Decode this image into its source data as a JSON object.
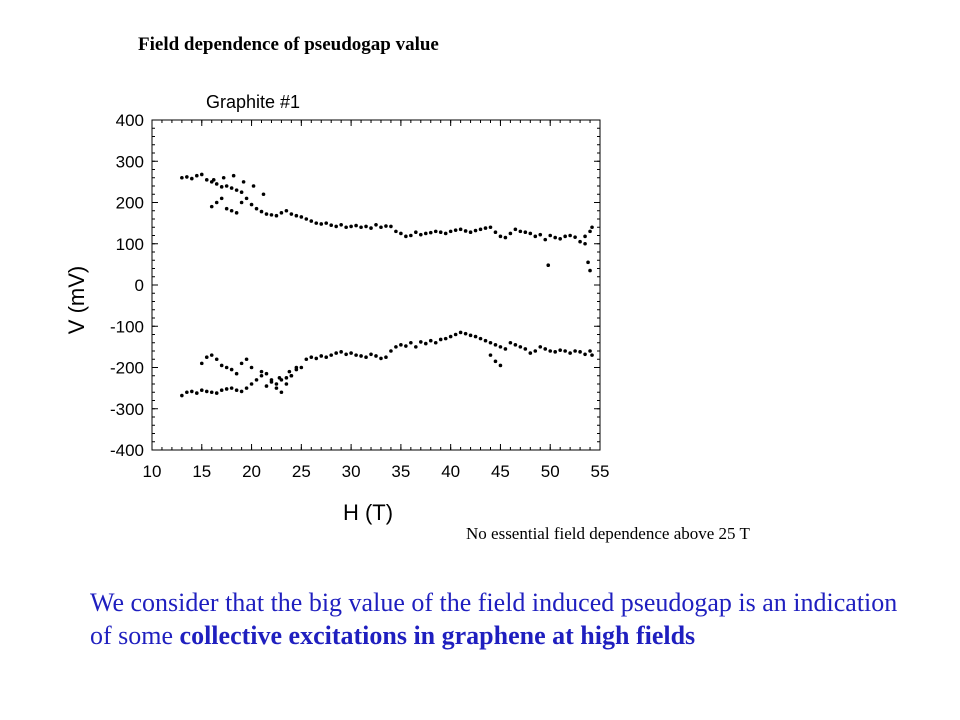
{
  "slide": {
    "title": "Field dependence of pseudogap value",
    "note": "No essential field dependence above 25 T",
    "conclusion_part1": "We consider that the big value of the field induced pseudogap is an indication of some ",
    "conclusion_bold": "collective excitations in graphene at high fields"
  },
  "chart_data": {
    "type": "scatter",
    "title": "Graphite #1",
    "xlabel": "H (T)",
    "ylabel": "V (mV)",
    "xlim": [
      10,
      55
    ],
    "ylim": [
      -400,
      400
    ],
    "xticks": [
      10,
      15,
      20,
      25,
      30,
      35,
      40,
      45,
      50,
      55
    ],
    "yticks": [
      400,
      300,
      200,
      100,
      0,
      -100,
      -200,
      -300,
      -400
    ],
    "grid": false,
    "legend": "none",
    "marker_color": "#000000",
    "series": [
      {
        "x": [
          13,
          13.5,
          14,
          14.5,
          15,
          15.5,
          16,
          16.5,
          17,
          17.5,
          18,
          18.5,
          19,
          19.5,
          20,
          20.5,
          21,
          21.5,
          22,
          22.5,
          23,
          23.5,
          24,
          24.5,
          25,
          25.5,
          26,
          26.5,
          27,
          27.5,
          28,
          28.5,
          29,
          29.5,
          30,
          30.5,
          31,
          31.5,
          32,
          32.5,
          33,
          33.5,
          34,
          34.5,
          35,
          35.5,
          36,
          36.5,
          37,
          37.5,
          38,
          38.5,
          39,
          39.5,
          40,
          40.5,
          41,
          41.5,
          42,
          42.5,
          43,
          43.5,
          44,
          44.5,
          45,
          45.5,
          46,
          46.5,
          47,
          47.5,
          48,
          48.5,
          49,
          49.5,
          50,
          50.5,
          51,
          51.5,
          52,
          52.5,
          53,
          53.5,
          54,
          54.2,
          16,
          16.5,
          17,
          17.5,
          18,
          18.5,
          19,
          16.2,
          17.2,
          18.2,
          19.2,
          20.2,
          21.2,
          49.8,
          53.8,
          54,
          53.5
        ],
        "y": [
          260,
          262,
          258,
          265,
          268,
          255,
          250,
          245,
          238,
          240,
          235,
          230,
          225,
          210,
          195,
          185,
          178,
          172,
          170,
          168,
          175,
          180,
          172,
          168,
          165,
          160,
          155,
          150,
          148,
          150,
          145,
          142,
          146,
          140,
          142,
          144,
          140,
          142,
          138,
          146,
          140,
          143,
          142,
          130,
          125,
          118,
          120,
          128,
          122,
          125,
          127,
          130,
          128,
          125,
          130,
          133,
          135,
          131,
          128,
          132,
          135,
          138,
          140,
          128,
          118,
          115,
          125,
          135,
          130,
          128,
          125,
          118,
          122,
          110,
          120,
          115,
          112,
          118,
          120,
          116,
          105,
          118,
          130,
          140,
          190,
          200,
          210,
          185,
          180,
          175,
          200,
          255,
          260,
          265,
          250,
          240,
          220,
          48,
          55,
          35,
          100
        ]
      },
      {
        "x": [
          13,
          13.5,
          14,
          14.5,
          15,
          15.5,
          16,
          16.5,
          17,
          17.5,
          18,
          18.5,
          19,
          19.5,
          20,
          20.5,
          21,
          21.5,
          22,
          22.5,
          23,
          23.5,
          24,
          24.5,
          25,
          25.5,
          26,
          26.5,
          27,
          27.5,
          28,
          28.5,
          29,
          29.5,
          30,
          30.5,
          31,
          31.5,
          32,
          32.5,
          33,
          33.5,
          34,
          34.5,
          35,
          35.5,
          36,
          36.5,
          37,
          37.5,
          38,
          38.5,
          39,
          39.5,
          40,
          40.5,
          41,
          41.5,
          42,
          42.5,
          43,
          43.5,
          44,
          44.5,
          45,
          45.5,
          46,
          46.5,
          47,
          47.5,
          48,
          48.5,
          49,
          49.5,
          50,
          50.5,
          51,
          51.5,
          52,
          52.5,
          53,
          53.5,
          54,
          54.2,
          15,
          15.5,
          16,
          16.5,
          17,
          17.5,
          18,
          18.5,
          19,
          19.5,
          20,
          21,
          22,
          22.5,
          23,
          23.5,
          24,
          24.5,
          21.5,
          22.8,
          23.8,
          44.5,
          45,
          44
        ],
        "y": [
          -268,
          -260,
          -258,
          -262,
          -255,
          -258,
          -260,
          -262,
          -255,
          -252,
          -250,
          -255,
          -258,
          -250,
          -240,
          -230,
          -220,
          -215,
          -235,
          -240,
          -230,
          -225,
          -220,
          -205,
          -200,
          -180,
          -175,
          -178,
          -172,
          -175,
          -170,
          -165,
          -162,
          -168,
          -165,
          -170,
          -172,
          -175,
          -168,
          -172,
          -178,
          -175,
          -160,
          -150,
          -145,
          -148,
          -140,
          -150,
          -138,
          -142,
          -135,
          -140,
          -132,
          -130,
          -125,
          -120,
          -115,
          -118,
          -122,
          -125,
          -130,
          -135,
          -140,
          -145,
          -150,
          -155,
          -140,
          -145,
          -150,
          -155,
          -165,
          -160,
          -150,
          -155,
          -160,
          -162,
          -158,
          -160,
          -165,
          -160,
          -162,
          -168,
          -160,
          -170,
          -190,
          -175,
          -170,
          -180,
          -195,
          -200,
          -205,
          -215,
          -190,
          -180,
          -200,
          -210,
          -230,
          -250,
          -260,
          -240,
          -220,
          -200,
          -245,
          -225,
          -210,
          -185,
          -195,
          -170
        ]
      }
    ]
  }
}
